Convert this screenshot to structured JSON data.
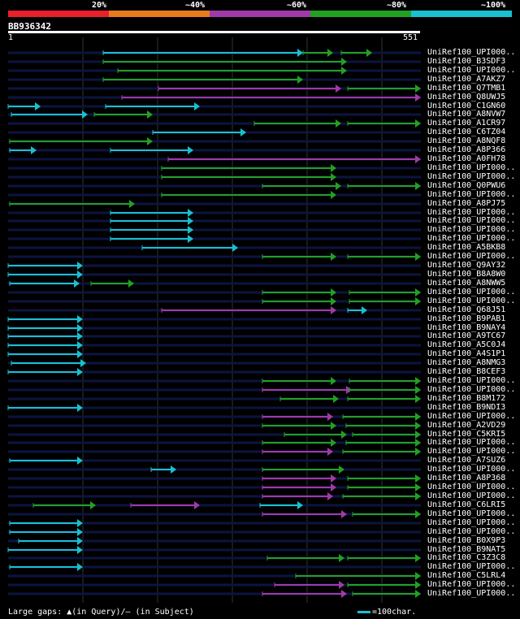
{
  "legend": {
    "labels": [
      "20%",
      "~40%",
      "~60%",
      "~80%",
      "~100%"
    ],
    "colors": [
      "#e8202a",
      "#e87a1e",
      "#a03aa8",
      "#22a022",
      "#19c0d0"
    ]
  },
  "query": {
    "name": "BB936342",
    "start": "1",
    "end": "551",
    "length": 551
  },
  "footer": "Large gaps: ▲(in Query)/– (in Subject)",
  "scale": "=100char.",
  "colors": {
    "cyan": "#19c0d0",
    "green": "#22a022",
    "purple": "#a03aa8",
    "track": "#0c1440",
    "grid": "#333333"
  },
  "hits": [
    {
      "label": "UniRef100_UPI000..",
      "segs": [
        [
          127,
          373,
          "c"
        ],
        [
          373,
          410,
          "g"
        ],
        [
          420,
          458,
          "g"
        ]
      ]
    },
    {
      "label": "UniRef100_B3SDF3",
      "segs": [
        [
          127,
          427,
          "g"
        ]
      ]
    },
    {
      "label": "UniRef100_UPI000..",
      "segs": [
        [
          145,
          427,
          "g"
        ]
      ]
    },
    {
      "label": "UniRef100_A7AKZ7",
      "segs": [
        [
          127,
          373,
          "g"
        ]
      ]
    },
    {
      "label": "UniRef100_Q7TMB1",
      "segs": [
        [
          195,
          420,
          "p"
        ],
        [
          428,
          518,
          "g"
        ]
      ]
    },
    {
      "label": "UniRef100_Q8UWJ5",
      "segs": [
        [
          150,
          518,
          "p"
        ]
      ]
    },
    {
      "label": "UniRef100_C1GN60",
      "segs": [
        [
          10,
          50,
          "c"
        ],
        [
          130,
          246,
          "c"
        ]
      ]
    },
    {
      "label": "UniRef100_A8NVW7",
      "segs": [
        [
          14,
          108,
          "c"
        ],
        [
          116,
          188,
          "g"
        ]
      ]
    },
    {
      "label": "UniRef100_A1CR97",
      "segs": [
        [
          313,
          420,
          "g"
        ],
        [
          428,
          518,
          "g"
        ]
      ]
    },
    {
      "label": "UniRef100_C6TZ04",
      "segs": [
        [
          188,
          303,
          "c"
        ]
      ]
    },
    {
      "label": "UniRef100_A8NQF8",
      "segs": [
        [
          12,
          188,
          "g"
        ]
      ]
    },
    {
      "label": "UniRef100_A8P366",
      "segs": [
        [
          12,
          45,
          "c"
        ],
        [
          136,
          238,
          "c"
        ]
      ]
    },
    {
      "label": "UniRef100_A0FH78",
      "segs": [
        [
          207,
          518,
          "p"
        ]
      ]
    },
    {
      "label": "UniRef100_UPI000..",
      "segs": [
        [
          199,
          414,
          "g"
        ]
      ]
    },
    {
      "label": "UniRef100_UPI000..",
      "segs": [
        [
          199,
          414,
          "g"
        ]
      ]
    },
    {
      "label": "UniRef100_Q0PWU6",
      "segs": [
        [
          323,
          420,
          "g"
        ],
        [
          428,
          518,
          "g"
        ]
      ]
    },
    {
      "label": "UniRef100_UPI000..",
      "segs": [
        [
          199,
          414,
          "g"
        ]
      ]
    },
    {
      "label": "UniRef100_A8PJ75",
      "segs": [
        [
          12,
          166,
          "g"
        ]
      ]
    },
    {
      "label": "UniRef100_UPI000..",
      "segs": [
        [
          136,
          238,
          "c"
        ]
      ]
    },
    {
      "label": "UniRef100_UPI000..",
      "segs": [
        [
          136,
          238,
          "c"
        ]
      ]
    },
    {
      "label": "UniRef100_UPI000..",
      "segs": [
        [
          136,
          238,
          "c"
        ]
      ]
    },
    {
      "label": "UniRef100_UPI000..",
      "segs": [
        [
          136,
          238,
          "c"
        ]
      ]
    },
    {
      "label": "UniRef100_A5BKB8",
      "segs": [
        [
          175,
          293,
          "c"
        ]
      ]
    },
    {
      "label": "UniRef100_UPI000..",
      "segs": [
        [
          323,
          414,
          "g"
        ],
        [
          428,
          518,
          "g"
        ]
      ]
    },
    {
      "label": "UniRef100_Q9AY32",
      "segs": [
        [
          10,
          102,
          "c"
        ]
      ]
    },
    {
      "label": "UniRef100_B8A8W0",
      "segs": [
        [
          10,
          102,
          "c"
        ]
      ]
    },
    {
      "label": "UniRef100_A8NWW5",
      "segs": [
        [
          12,
          98,
          "c"
        ],
        [
          112,
          165,
          "g"
        ]
      ]
    },
    {
      "label": "UniRef100_UPI000..",
      "segs": [
        [
          323,
          414,
          "g"
        ],
        [
          430,
          518,
          "g"
        ]
      ]
    },
    {
      "label": "UniRef100_UPI000..",
      "segs": [
        [
          323,
          414,
          "g"
        ],
        [
          430,
          518,
          "g"
        ]
      ]
    },
    {
      "label": "UniRef100_Q68J51",
      "segs": [
        [
          199,
          414,
          "p"
        ],
        [
          428,
          452,
          "c"
        ]
      ]
    },
    {
      "label": "UniRef100_B9PAB1",
      "segs": [
        [
          10,
          102,
          "c"
        ]
      ]
    },
    {
      "label": "UniRef100_B9NAY4",
      "segs": [
        [
          10,
          102,
          "c"
        ]
      ]
    },
    {
      "label": "UniRef100_A9TC67",
      "segs": [
        [
          10,
          102,
          "c"
        ]
      ]
    },
    {
      "label": "UniRef100_A5C0J4",
      "segs": [
        [
          10,
          102,
          "c"
        ]
      ]
    },
    {
      "label": "UniRef100_A4S1P1",
      "segs": [
        [
          10,
          102,
          "c"
        ]
      ]
    },
    {
      "label": "UniRef100_A8NMG3",
      "segs": [
        [
          14,
          106,
          "c"
        ]
      ]
    },
    {
      "label": "UniRef100_B8CEF3",
      "segs": [
        [
          10,
          102,
          "c"
        ]
      ]
    },
    {
      "label": "UniRef100_UPI000..",
      "segs": [
        [
          323,
          414,
          "g"
        ],
        [
          430,
          518,
          "g"
        ]
      ]
    },
    {
      "label": "UniRef100_UPI000..",
      "segs": [
        [
          323,
          433,
          "p"
        ],
        [
          430,
          518,
          "g"
        ]
      ]
    },
    {
      "label": "UniRef100_B8M172",
      "segs": [
        [
          345,
          417,
          "g"
        ],
        [
          428,
          518,
          "g"
        ]
      ]
    },
    {
      "label": "UniRef100_B9NDI3",
      "segs": [
        [
          10,
          102,
          "c"
        ]
      ]
    },
    {
      "label": "UniRef100_UPI000..",
      "segs": [
        [
          323,
          410,
          "p"
        ],
        [
          422,
          518,
          "g"
        ]
      ]
    },
    {
      "label": "UniRef100_A2VD29",
      "segs": [
        [
          323,
          414,
          "g"
        ],
        [
          426,
          518,
          "g"
        ]
      ]
    },
    {
      "label": "UniRef100_C5KRI5",
      "segs": [
        [
          350,
          427,
          "g"
        ],
        [
          434,
          518,
          "g"
        ]
      ]
    },
    {
      "label": "UniRef100_UPI000..",
      "segs": [
        [
          323,
          414,
          "g"
        ],
        [
          426,
          518,
          "g"
        ]
      ]
    },
    {
      "label": "UniRef100_UPI000..",
      "segs": [
        [
          323,
          410,
          "p"
        ],
        [
          422,
          518,
          "g"
        ]
      ]
    },
    {
      "label": "UniRef100_A7SUZ6",
      "segs": [
        [
          12,
          102,
          "c"
        ]
      ]
    },
    {
      "label": "UniRef100_UPI000..",
      "segs": [
        [
          186,
          217,
          "c"
        ],
        [
          323,
          424,
          "g"
        ]
      ]
    },
    {
      "label": "UniRef100_A8P368",
      "segs": [
        [
          323,
          414,
          "p"
        ],
        [
          428,
          518,
          "g"
        ]
      ]
    },
    {
      "label": "UniRef100_UPI000..",
      "segs": [
        [
          323,
          414,
          "p"
        ],
        [
          428,
          518,
          "g"
        ]
      ]
    },
    {
      "label": "UniRef100_UPI000..",
      "segs": [
        [
          323,
          410,
          "p"
        ],
        [
          422,
          518,
          "g"
        ]
      ]
    },
    {
      "label": "UniRef100_C6LRI5",
      "segs": [
        [
          41,
          118,
          "g"
        ],
        [
          161,
          246,
          "p"
        ],
        [
          320,
          373,
          "c"
        ]
      ]
    },
    {
      "label": "UniRef100_UPI000..",
      "segs": [
        [
          323,
          427,
          "p"
        ],
        [
          434,
          518,
          "g"
        ]
      ]
    },
    {
      "label": "UniRef100_UPI000..",
      "segs": [
        [
          12,
          102,
          "c"
        ]
      ]
    },
    {
      "label": "UniRef100_UPI000..",
      "segs": [
        [
          12,
          102,
          "c"
        ]
      ]
    },
    {
      "label": "UniRef100_B0X9P3",
      "segs": [
        [
          23,
          102,
          "c"
        ]
      ]
    },
    {
      "label": "UniRef100_B9NAT5",
      "segs": [
        [
          10,
          102,
          "c"
        ]
      ]
    },
    {
      "label": "UniRef100_C3Z3C8",
      "segs": [
        [
          329,
          424,
          "g"
        ],
        [
          428,
          518,
          "g"
        ]
      ]
    },
    {
      "label": "UniRef100_UPI000..",
      "segs": [
        [
          12,
          102,
          "c"
        ]
      ]
    },
    {
      "label": "UniRef100_C5LRL4",
      "segs": [
        [
          364,
          518,
          "g"
        ]
      ]
    },
    {
      "label": "UniRef100_UPI000..",
      "segs": [
        [
          338,
          424,
          "p"
        ],
        [
          428,
          518,
          "g"
        ]
      ]
    },
    {
      "label": "UniRef100_UPI000..",
      "segs": [
        [
          323,
          427,
          "p"
        ],
        [
          434,
          518,
          "g"
        ]
      ]
    }
  ]
}
